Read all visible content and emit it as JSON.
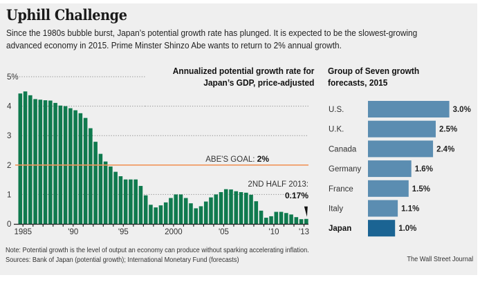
{
  "header": {
    "title": "Uphill Challenge",
    "subtitle": "Since the 1980s bubble burst, Japan’s potential growth rate has plunged. It is expected to be the slowest-growing advanced economy in 2015. Prime Minster Shinzo Abe wants to return to 2% annual growth."
  },
  "footer": {
    "note": "Note: Potential growth is the level of output an economy can produce without sparking accelerating inflation.",
    "sources": "Sources: Bank of Japan (potential growth); International Monetary Fund (forecasts)",
    "credit": "The Wall Street Journal"
  },
  "colors": {
    "bar_green": "#0f7a4e",
    "goal_line": "#f0955a",
    "g7_bar": "#5b8db1",
    "g7_highlight": "#1b6493",
    "background": "#efefef"
  },
  "chart_data": [
    {
      "type": "bar",
      "title": "Annualized potential growth rate for Japan’s GDP, price-adjusted",
      "title_lines": [
        "Annualized potential growth rate for",
        "Japan’s GDP, price-adjusted"
      ],
      "xlabel": "",
      "ylabel": "",
      "ylim": [
        0,
        5
      ],
      "yticks": [
        0,
        1,
        2,
        3,
        4,
        5
      ],
      "ytick_labels": [
        "0",
        "1",
        "2",
        "3",
        "4",
        "5%"
      ],
      "grid": true,
      "x_tick_labels": [
        {
          "year": 1985,
          "label": "1985"
        },
        {
          "year": 1990,
          "label": "'90"
        },
        {
          "year": 1995,
          "label": "'95"
        },
        {
          "year": 2000,
          "label": "2000"
        },
        {
          "year": 2005,
          "label": "'05"
        },
        {
          "year": 2010,
          "label": "'10"
        },
        {
          "year": 2013,
          "label": "'13"
        }
      ],
      "period": "half-year",
      "start": "1985 H1",
      "end": "2013 H2",
      "values": [
        4.43,
        4.5,
        4.37,
        4.24,
        4.22,
        4.2,
        4.19,
        4.11,
        4.02,
        4.0,
        3.93,
        3.86,
        3.76,
        3.6,
        3.25,
        2.79,
        2.38,
        2.12,
        1.95,
        1.77,
        1.62,
        1.51,
        1.51,
        1.51,
        1.29,
        0.97,
        0.65,
        0.56,
        0.63,
        0.73,
        0.88,
        1.0,
        1.0,
        0.88,
        0.7,
        0.53,
        0.6,
        0.76,
        0.9,
        1.0,
        1.08,
        1.18,
        1.17,
        1.11,
        1.08,
        1.06,
        0.99,
        0.77,
        0.45,
        0.21,
        0.26,
        0.41,
        0.41,
        0.37,
        0.32,
        0.23,
        0.16,
        0.17
      ],
      "reference_line": {
        "value": 2,
        "label": "ABE'S GOAL: ",
        "label_value": "2%"
      },
      "annotation": {
        "label": "2ND HALF 2013:",
        "value": "0.17%"
      }
    },
    {
      "type": "bar",
      "orientation": "horizontal",
      "title": "Group of Seven growth forecasts, 2015",
      "title_lines": [
        "Group of Seven growth",
        "forecasts, 2015"
      ],
      "categories": [
        "U.S.",
        "U.K.",
        "Canada",
        "Germany",
        "France",
        "Italy",
        "Japan"
      ],
      "values": [
        3.0,
        2.5,
        2.4,
        1.6,
        1.5,
        1.1,
        1.0
      ],
      "value_labels": [
        "3.0%",
        "2.5%",
        "2.4%",
        "1.6%",
        "1.5%",
        "1.1%",
        "1.0%"
      ],
      "highlight": "Japan",
      "xlim": [
        0,
        3.0
      ]
    }
  ]
}
